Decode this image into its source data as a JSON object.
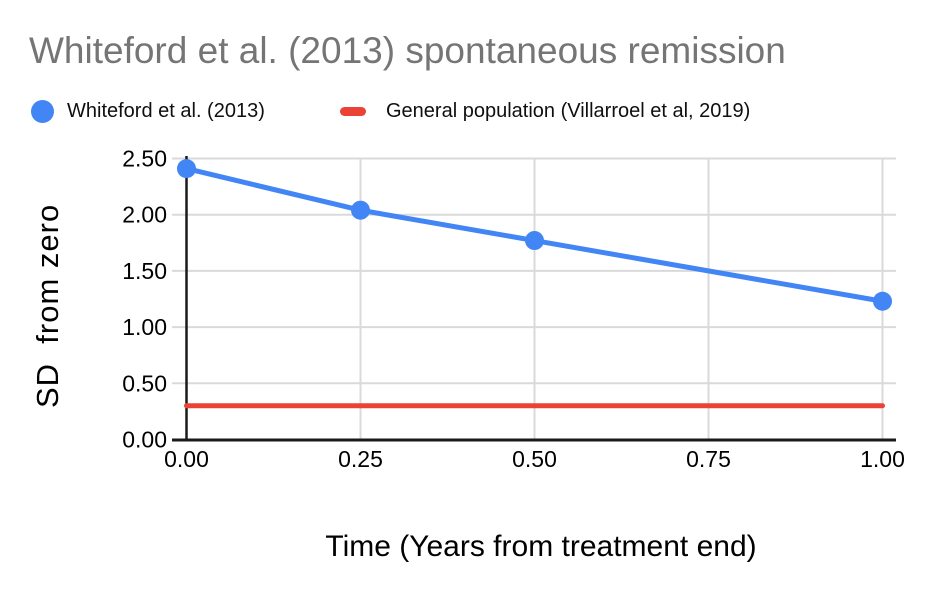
{
  "title": "Whiteford et al. (2013) spontaneous remission",
  "legend": [
    {
      "label": "Whiteford et al. (2013)",
      "marker": "circle",
      "color": "#4285F4"
    },
    {
      "label": "General population (Villarroel et al, 2019)",
      "marker": "dash",
      "color": "#EA4335"
    }
  ],
  "axes": {
    "x_title": "Time (Years from treatment end)",
    "y_title": "SD  from zero"
  },
  "chart_data": {
    "type": "line",
    "title": "Whiteford et al. (2013) spontaneous remission",
    "xlabel": "Time (Years from treatment end)",
    "ylabel": "SD from zero",
    "xlim": [
      0,
      1.0
    ],
    "ylim": [
      0,
      2.5
    ],
    "x_ticks": [
      "0.00",
      "0.25",
      "0.50",
      "0.75",
      "1.00"
    ],
    "y_ticks": [
      "0.00",
      "0.50",
      "1.00",
      "1.50",
      "2.00",
      "2.50"
    ],
    "grid": true,
    "legend_position": "top-left",
    "series": [
      {
        "name": "Whiteford et al. (2013)",
        "type": "line",
        "color": "#4285F4",
        "point_marker": true,
        "x": [
          0,
          0.25,
          0.5,
          1.0
        ],
        "values": [
          2.41,
          2.04,
          1.77,
          1.23
        ]
      },
      {
        "name": "General population (Villarroel et al, 2019)",
        "type": "line",
        "color": "#EA4335",
        "point_marker": false,
        "x": [
          0,
          1.0
        ],
        "values": [
          0.3,
          0.3
        ]
      }
    ]
  },
  "colors": {
    "series_blue": "#4285F4",
    "series_red": "#EA4335",
    "title_gray": "#757575",
    "grid_gray": "#dadada",
    "axis_black": "#1a1a1a",
    "tick_text": "#000000"
  }
}
